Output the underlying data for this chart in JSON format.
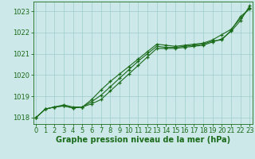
{
  "x": [
    0,
    1,
    2,
    3,
    4,
    5,
    6,
    7,
    8,
    9,
    10,
    11,
    12,
    13,
    14,
    15,
    16,
    17,
    18,
    19,
    20,
    21,
    22,
    23
  ],
  "line1": [
    1018.0,
    1018.4,
    1018.5,
    1018.55,
    1018.45,
    1018.5,
    1018.75,
    1019.05,
    1019.45,
    1019.85,
    1020.25,
    1020.65,
    1021.0,
    1021.35,
    1021.3,
    1021.3,
    1021.35,
    1021.4,
    1021.45,
    1021.6,
    1021.65,
    1022.1,
    1022.75,
    1023.1
  ],
  "line2": [
    1018.0,
    1018.4,
    1018.5,
    1018.6,
    1018.5,
    1018.5,
    1018.85,
    1019.3,
    1019.7,
    1020.05,
    1020.4,
    1020.75,
    1021.1,
    1021.45,
    1021.4,
    1021.35,
    1021.4,
    1021.45,
    1021.5,
    1021.65,
    1021.9,
    1022.15,
    1022.65,
    1023.15
  ],
  "line3": [
    1018.0,
    1018.4,
    1018.5,
    1018.55,
    1018.45,
    1018.5,
    1018.65,
    1018.85,
    1019.25,
    1019.65,
    1020.05,
    1020.45,
    1020.85,
    1021.25,
    1021.25,
    1021.25,
    1021.3,
    1021.35,
    1021.4,
    1021.55,
    1021.7,
    1022.05,
    1022.55,
    1023.25
  ],
  "line_color": "#1a6b1a",
  "background_color": "#cce8e8",
  "grid_color": "#9ecece",
  "ylabel_ticks": [
    1018,
    1019,
    1020,
    1021,
    1022,
    1023
  ],
  "xlabel_ticks": [
    0,
    1,
    2,
    3,
    4,
    5,
    6,
    7,
    8,
    9,
    10,
    11,
    12,
    13,
    14,
    15,
    16,
    17,
    18,
    19,
    20,
    21,
    22,
    23
  ],
  "xlabel": "Graphe pression niveau de la mer (hPa)",
  "ylim": [
    1017.7,
    1023.45
  ],
  "xlim": [
    -0.3,
    23.3
  ],
  "xlabel_fontsize": 7,
  "tick_fontsize": 6,
  "marker": "+",
  "markersize": 3.5,
  "linewidth": 0.8
}
